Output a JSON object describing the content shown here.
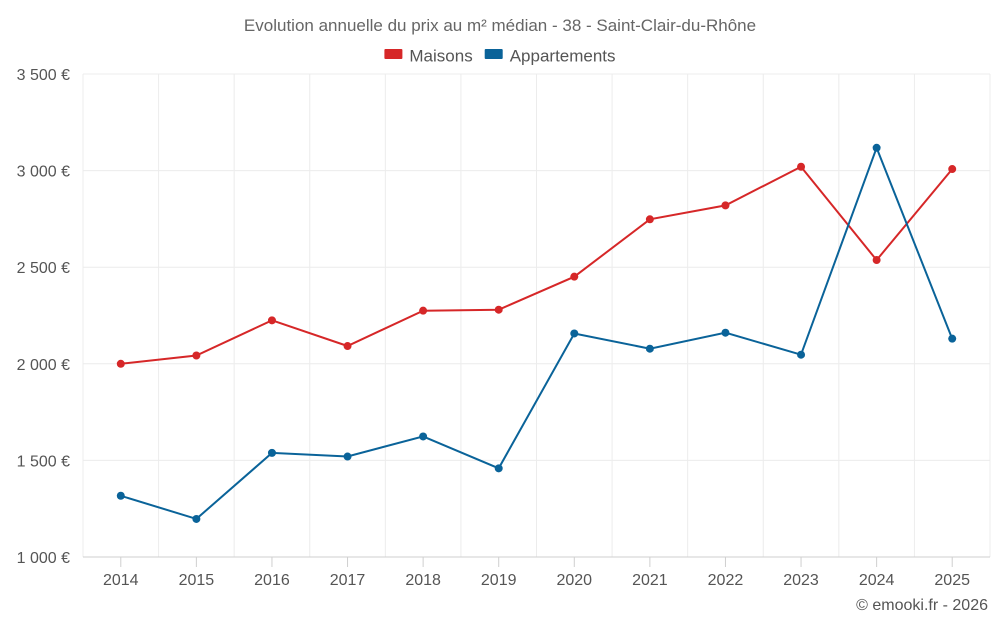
{
  "chart_data": {
    "type": "line",
    "title": "Evolution annuelle du prix au m² médian - 38 - Saint-Clair-du-Rhône",
    "categories": [
      "2014",
      "2015",
      "2016",
      "2017",
      "2018",
      "2019",
      "2020",
      "2021",
      "2022",
      "2023",
      "2024",
      "2025"
    ],
    "ylim": [
      1000,
      3500
    ],
    "yticks": [
      1000,
      1500,
      2000,
      2500,
      3000,
      3500
    ],
    "ytick_labels": [
      "1 000 €",
      "1 500 €",
      "2 000 €",
      "2 500 €",
      "3 000 €",
      "3 500 €"
    ],
    "grid": true,
    "legend_position": "top-center",
    "series": [
      {
        "name": "Maisons",
        "color": "#d62728",
        "values": [
          2000,
          2043,
          2225,
          2092,
          2275,
          2280,
          2451,
          2748,
          2820,
          3020,
          2537,
          3008
        ]
      },
      {
        "name": "Appartements",
        "color": "#0a6399",
        "values": [
          1317,
          1197,
          1539,
          1520,
          1624,
          1459,
          2157,
          2078,
          2161,
          2047,
          3118,
          2130
        ]
      }
    ],
    "credit": "© emooki.fr - 2026"
  }
}
